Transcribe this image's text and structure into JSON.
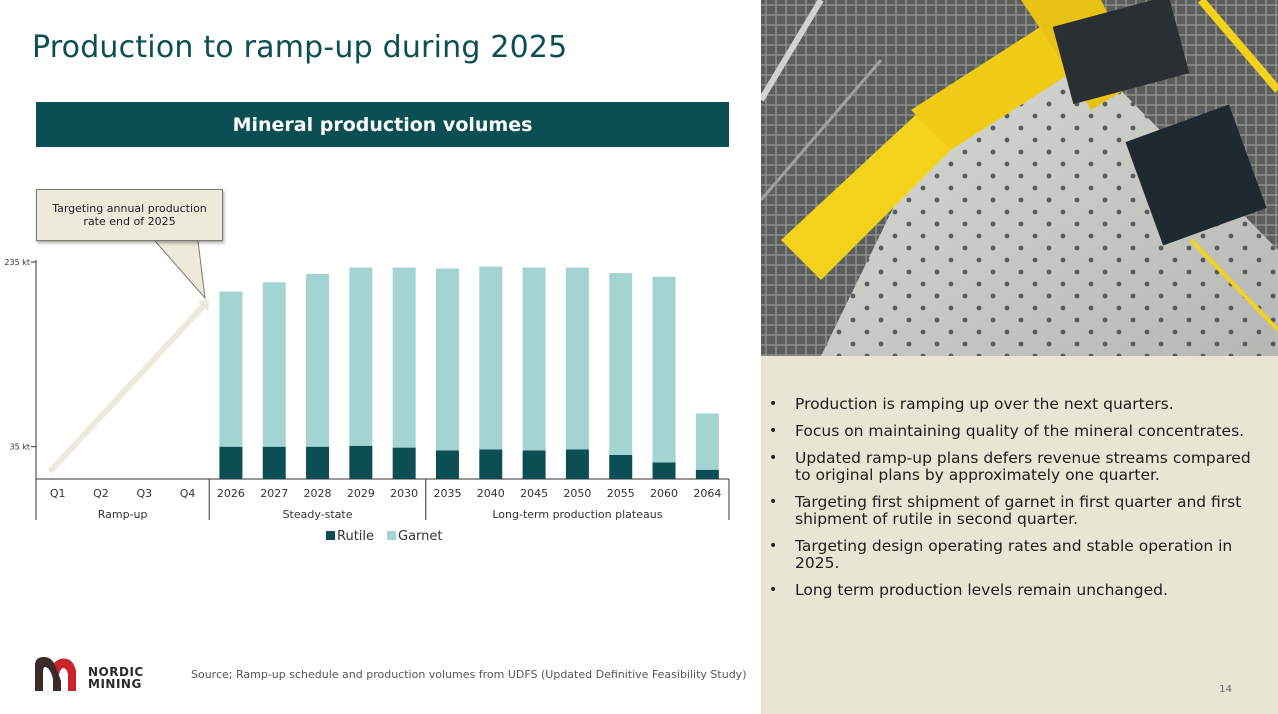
{
  "title": "Production to ramp-up during 2025",
  "banner": "Mineral production volumes",
  "callout": "Targeting annual production rate end of 2025",
  "source": "Source; Ramp-up schedule and production volumes from UDFS  (Updated Definitive Feasibility Study)",
  "logo": {
    "word_top": "NORDIC",
    "word_bottom": "MINING",
    "icon": "nordic-mining-logo"
  },
  "page_number": "14",
  "bullets": [
    "Production is ramping up over the next quarters.",
    "Focus on maintaining quality of the mineral concentrates.",
    "Updated ramp-up plans defers revenue streams compared to original plans by approximately one quarter.",
    "Targeting first shipment of garnet in first quarter and first shipment of rutile in second quarter.",
    "Targeting design operating rates and stable operation in 2025.",
    "Long term production levels remain unchanged."
  ],
  "photo": {
    "icon": "mill-equipment-photo"
  },
  "colors": {
    "rutile": "#0b4f55",
    "garnet": "#a3d4d2",
    "banner": "#0b4f55",
    "panel": "#e8e6d2"
  },
  "chart_data": {
    "type": "bar",
    "stacked": true,
    "categories": [
      "Q1",
      "Q2",
      "Q3",
      "Q4",
      "2026",
      "2027",
      "2028",
      "2029",
      "2030",
      "2035",
      "2040",
      "2045",
      "2050",
      "2055",
      "2060",
      "2064"
    ],
    "groups": [
      {
        "label": "Ramp-up",
        "categories": [
          "Q1",
          "Q2",
          "Q3",
          "Q4"
        ]
      },
      {
        "label": "Steady-state",
        "categories": [
          "2026",
          "2027",
          "2028",
          "2029",
          "2030"
        ]
      },
      {
        "label": "Long-term production plateaus",
        "categories": [
          "2035",
          "2040",
          "2045",
          "2050",
          "2055",
          "2060",
          "2064"
        ]
      }
    ],
    "y_ticks": [
      {
        "label": "35 kt",
        "value": 35
      },
      {
        "label": "235 kt",
        "value": 235
      }
    ],
    "ylim": [
      0,
      235
    ],
    "series": [
      {
        "name": "Rutile",
        "values": [
          0,
          0,
          0,
          0,
          35,
          35,
          35,
          36,
          34,
          31,
          32,
          31,
          32,
          26,
          18,
          10
        ]
      },
      {
        "name": "Garnet",
        "values": [
          0,
          0,
          0,
          0,
          168,
          178,
          187,
          193,
          195,
          197,
          198,
          198,
          197,
          197,
          201,
          61
        ]
      }
    ],
    "ramp_arrow": {
      "from": {
        "category": "Q1",
        "value": 10
      },
      "to": {
        "category": "Q4",
        "value": 190
      }
    },
    "legend": "bottom-center"
  }
}
